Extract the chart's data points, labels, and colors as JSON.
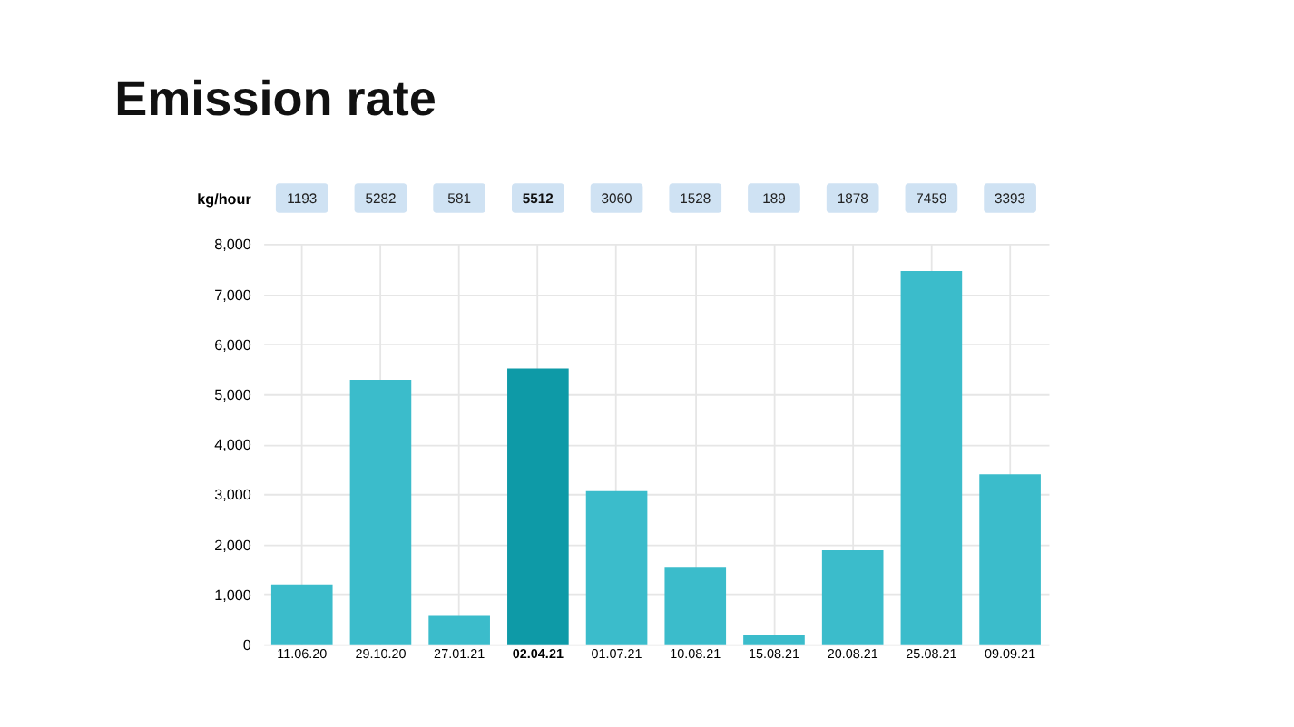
{
  "chart_data": {
    "type": "bar",
    "title": "Emission rate",
    "ylabel": "kg/hour",
    "categories": [
      "11.06.20",
      "29.10.20",
      "27.01.21",
      "02.04.21",
      "01.07.21",
      "10.08.21",
      "15.08.21",
      "20.08.21",
      "25.08.21",
      "09.09.21"
    ],
    "values": [
      1193,
      5282,
      581,
      5512,
      3060,
      1528,
      189,
      1878,
      7459,
      3393
    ],
    "colors": [
      "#3bbccb",
      "#3bbccb",
      "#3bbccb",
      "#0e9aa7",
      "#3bbccb",
      "#3bbccb",
      "#3bbccb",
      "#3bbccb",
      "#3bbccb",
      "#3bbccb"
    ],
    "data_labels": true,
    "ylim": [
      0,
      8000
    ],
    "yticks": [
      0,
      {
        "value": 1000,
        "label": "1,000"
      },
      {
        "value": 2000,
        "label": "2,000"
      },
      {
        "value": 3000,
        "label": "3,000"
      },
      {
        "value": 4000,
        "label": "4,000"
      },
      {
        "value": 5000,
        "label": "5,000"
      },
      {
        "value": 6000,
        "label": "6,000"
      },
      {
        "value": 7000,
        "label": "7,000"
      },
      {
        "value": 8000,
        "label": "8,000"
      }
    ],
    "grid": true
  }
}
